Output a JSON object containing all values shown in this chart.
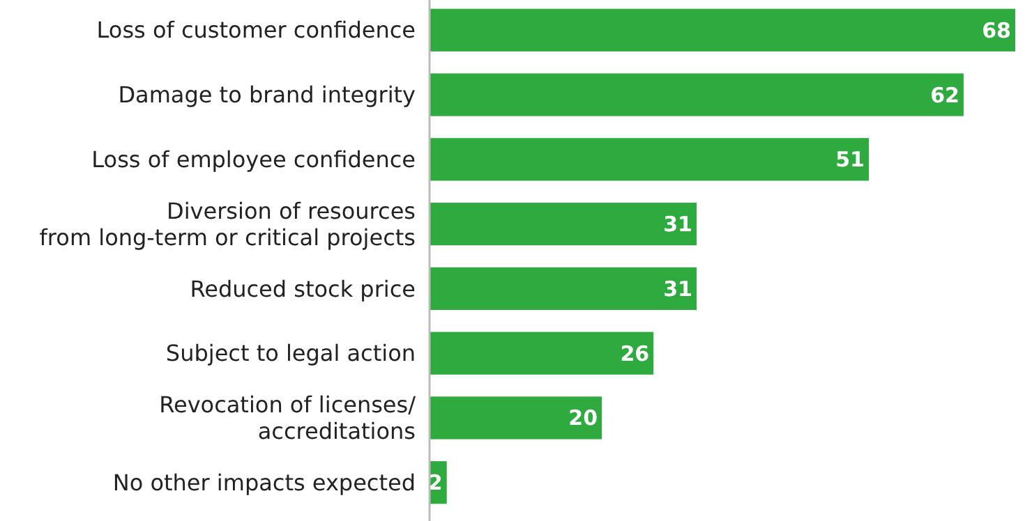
{
  "chart_data": {
    "type": "bar",
    "orientation": "horizontal",
    "categories": [
      "Loss of customer confidence",
      "Damage to brand integrity",
      "Loss of employee confidence",
      "Diversion of resources\nfrom long-term or critical projects",
      "Reduced stock price",
      "Subject to legal action",
      "Revocation of licenses/\naccreditations",
      "No other impacts expected"
    ],
    "values": [
      68,
      62,
      51,
      31,
      31,
      26,
      20,
      2
    ],
    "color": "#2eaa3e",
    "data_labels": true
  }
}
